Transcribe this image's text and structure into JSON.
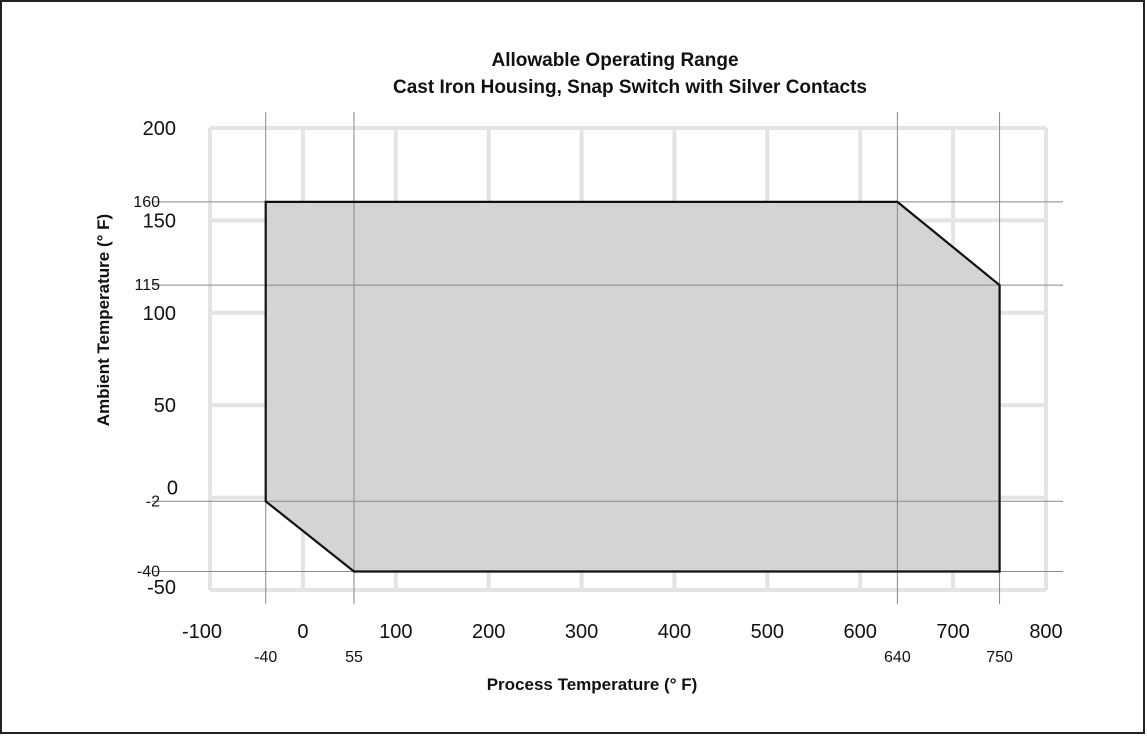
{
  "chart_data": {
    "type": "area",
    "title": [
      "Allowable Operating Range",
      "Cast Iron Housing, Snap Switch with Silver Contacts"
    ],
    "xlabel": "Process Temperature (° F)",
    "ylabel": "Ambient Temperature (° F)",
    "xlim": [
      -100,
      800
    ],
    "ylim": [
      -50,
      200
    ],
    "x_ticks": [
      "-100",
      "0",
      "100",
      "200",
      "300",
      "400",
      "500",
      "600",
      "700",
      "800"
    ],
    "y_ticks": [
      "-50",
      "0",
      "50",
      "100",
      "150",
      "200"
    ],
    "x_ref_ticks": [
      "-40",
      "55",
      "640",
      "750"
    ],
    "y_ref_ticks": [
      "-40",
      "-2",
      "115",
      "160"
    ],
    "x_ref_lines": [
      -40,
      55,
      640,
      750
    ],
    "y_ref_lines": [
      -40,
      -2,
      115,
      160
    ],
    "grid": true,
    "region": {
      "x": [
        -40,
        640,
        750,
        750,
        55,
        -40
      ],
      "y": [
        160,
        160,
        115,
        -40,
        -40,
        -2
      ]
    },
    "colors": {
      "region_fill": "#d3d4d6",
      "region_edge": "#111111",
      "grid": "#e4e4e4",
      "ref_line": "#888888"
    }
  }
}
